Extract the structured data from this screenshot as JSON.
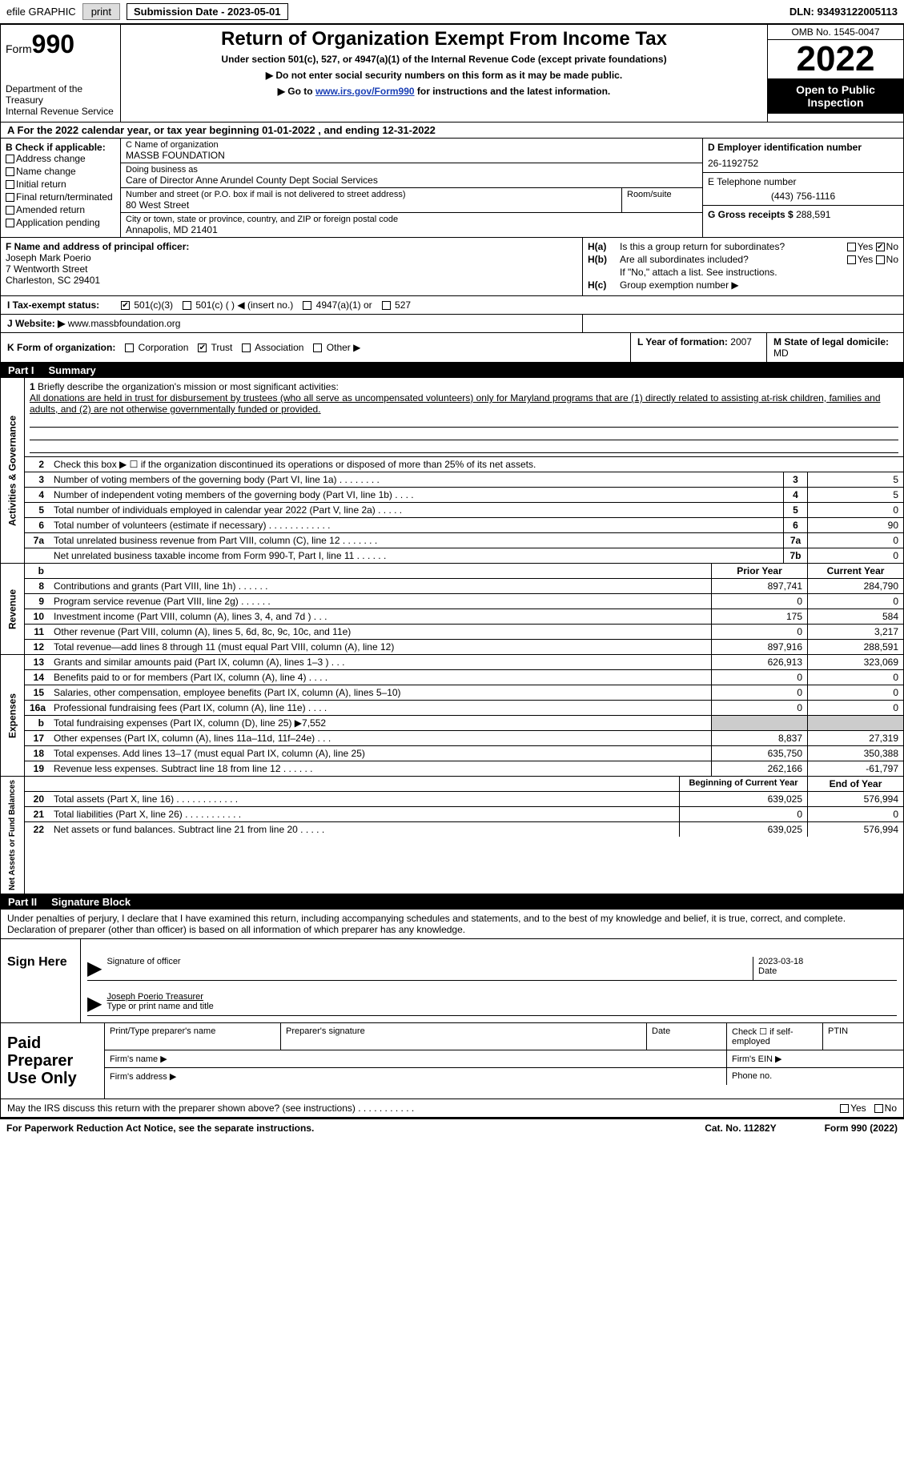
{
  "top": {
    "efile_label": "efile GRAPHIC",
    "print_btn": "print",
    "sub_date": "Submission Date - 2023-05-01",
    "dln": "DLN: 93493122005113"
  },
  "hdr": {
    "form_label": "Form",
    "form_num": "990",
    "dept": "Department of the Treasury\nInternal Revenue Service",
    "title": "Return of Organization Exempt From Income Tax",
    "sub1": "Under section 501(c), 527, or 4947(a)(1) of the Internal Revenue Code (except private foundations)",
    "sub2": "▶ Do not enter social security numbers on this form as it may be made public.",
    "sub3_a": "▶ Go to ",
    "sub3_link": "www.irs.gov/Form990",
    "sub3_b": " for instructions and the latest information.",
    "omb": "OMB No. 1545-0047",
    "year": "2022",
    "open_pub": "Open to Public Inspection"
  },
  "row_a": "A For the 2022 calendar year, or tax year beginning 01-01-2022    , and ending 12-31-2022",
  "col_b": {
    "hdr": "B Check if applicable:",
    "opts": [
      "Address change",
      "Name change",
      "Initial return",
      "Final return/terminated",
      "Amended return",
      "Application pending"
    ]
  },
  "col_c": {
    "name_lbl": "C Name of organization",
    "name_val": "MASSB FOUNDATION",
    "dba_lbl": "Doing business as",
    "dba_val": "Care of Director Anne Arundel County Dept Social Services",
    "street_lbl": "Number and street (or P.O. box if mail is not delivered to street address)",
    "street_val": "80 West Street",
    "room_lbl": "Room/suite",
    "city_lbl": "City or town, state or province, country, and ZIP or foreign postal code",
    "city_val": "Annapolis, MD  21401"
  },
  "col_d": {
    "ein_lbl": "D Employer identification number",
    "ein_val": "26-1192752",
    "tel_lbl": "E Telephone number",
    "tel_val": "(443) 756-1116",
    "gross_lbl": "G Gross receipts $",
    "gross_val": "288,591"
  },
  "row_f": {
    "lbl": "F Name and address of principal officer:",
    "name": "Joseph Mark Poerio",
    "street": "7 Wentworth Street",
    "city": "Charleston, SC  29401"
  },
  "row_h": {
    "ha_lbl": "H(a)",
    "ha_txt": "Is this a group return for subordinates?",
    "yes": "Yes",
    "no": "No",
    "hb_lbl": "H(b)",
    "hb_txt": "Are all subordinates included?",
    "hb_note": "If \"No,\" attach a list. See instructions.",
    "hc_lbl": "H(c)",
    "hc_txt": "Group exemption number ▶"
  },
  "row_i": {
    "lbl": "I   Tax-exempt status:",
    "opt1": "501(c)(3)",
    "opt2": "501(c) (  ) ◀ (insert no.)",
    "opt3": "4947(a)(1) or",
    "opt4": "527"
  },
  "row_j": {
    "lbl": "J  Website: ▶",
    "val": "www.massbfoundation.org"
  },
  "row_k": {
    "lbl": "K Form of organization:",
    "opts": [
      "Corporation",
      "Trust",
      "Association",
      "Other ▶"
    ],
    "l_lbl": "L Year of formation:",
    "l_val": "2007",
    "m_lbl": "M State of legal domicile:",
    "m_val": "MD"
  },
  "part1": {
    "pn": "Part I",
    "title": "Summary"
  },
  "vtabs": {
    "ag": "Activities & Governance",
    "rev": "Revenue",
    "exp": "Expenses",
    "na": "Net Assets or Fund Balances"
  },
  "mission": {
    "num": "1",
    "lbl": "Briefly describe the organization's mission or most significant activities:",
    "txt": "All donations are held in trust for disbursement by trustees (who all serve as uncompensated volunteers) only for Maryland programs that are (1) directly related to assisting at-risk children, families and adults, and (2) are not otherwise governmentally funded or provided."
  },
  "line2": {
    "num": "2",
    "txt": "Check this box ▶ ☐ if the organization discontinued its operations or disposed of more than 25% of its net assets."
  },
  "lines_ag": [
    {
      "n": "3",
      "d": "Number of voting members of the governing body (Part VI, line 1a)  .   .   .   .   .   .   .   .",
      "b": "3",
      "v": "5"
    },
    {
      "n": "4",
      "d": "Number of independent voting members of the governing body (Part VI, line 1b)  .   .   .   .",
      "b": "4",
      "v": "5"
    },
    {
      "n": "5",
      "d": "Total number of individuals employed in calendar year 2022 (Part V, line 2a)  .   .   .   .   .",
      "b": "5",
      "v": "0"
    },
    {
      "n": "6",
      "d": "Total number of volunteers (estimate if necessary)   .   .   .   .   .   .   .   .   .   .   .   .",
      "b": "6",
      "v": "90"
    },
    {
      "n": "7a",
      "d": "Total unrelated business revenue from Part VIII, column (C), line 12  .   .   .   .   .   .   .",
      "b": "7a",
      "v": "0"
    },
    {
      "n": "",
      "d": "Net unrelated business taxable income from Form 990-T, Part I, line 11  .   .   .   .   .   .",
      "b": "7b",
      "v": "0"
    }
  ],
  "rev_hdr": {
    "py": "Prior Year",
    "cy": "Current Year"
  },
  "lines_rev": [
    {
      "n": "8",
      "d": "Contributions and grants (Part VIII, line 1h)   .   .   .   .   .   .",
      "py": "897,741",
      "cy": "284,790"
    },
    {
      "n": "9",
      "d": "Program service revenue (Part VIII, line 2g)   .   .   .   .   .   .",
      "py": "0",
      "cy": "0"
    },
    {
      "n": "10",
      "d": "Investment income (Part VIII, column (A), lines 3, 4, and 7d )   .   .   .",
      "py": "175",
      "cy": "584"
    },
    {
      "n": "11",
      "d": "Other revenue (Part VIII, column (A), lines 5, 6d, 8c, 9c, 10c, and 11e)",
      "py": "0",
      "cy": "3,217"
    },
    {
      "n": "12",
      "d": "Total revenue—add lines 8 through 11 (must equal Part VIII, column (A), line 12)",
      "py": "897,916",
      "cy": "288,591"
    }
  ],
  "lines_exp": [
    {
      "n": "13",
      "d": "Grants and similar amounts paid (Part IX, column (A), lines 1–3 )   .   .   .",
      "py": "626,913",
      "cy": "323,069"
    },
    {
      "n": "14",
      "d": "Benefits paid to or for members (Part IX, column (A), line 4)   .   .   .   .",
      "py": "0",
      "cy": "0"
    },
    {
      "n": "15",
      "d": "Salaries, other compensation, employee benefits (Part IX, column (A), lines 5–10)",
      "py": "0",
      "cy": "0"
    },
    {
      "n": "16a",
      "d": "Professional fundraising fees (Part IX, column (A), line 11e)   .   .   .   .",
      "py": "0",
      "cy": "0"
    },
    {
      "n": "b",
      "d": "Total fundraising expenses (Part IX, column (D), line 25) ▶7,552",
      "py": "",
      "cy": "",
      "grey": true
    },
    {
      "n": "17",
      "d": "Other expenses (Part IX, column (A), lines 11a–11d, 11f–24e)   .   .   .",
      "py": "8,837",
      "cy": "27,319"
    },
    {
      "n": "18",
      "d": "Total expenses. Add lines 13–17 (must equal Part IX, column (A), line 25)",
      "py": "635,750",
      "cy": "350,388"
    },
    {
      "n": "19",
      "d": "Revenue less expenses. Subtract line 18 from line 12  .   .   .   .   .   .",
      "py": "262,166",
      "cy": "-61,797"
    }
  ],
  "na_hdr": {
    "py": "Beginning of Current Year",
    "cy": "End of Year"
  },
  "lines_na": [
    {
      "n": "20",
      "d": "Total assets (Part X, line 16)  .   .   .   .   .   .   .   .   .   .   .   .",
      "py": "639,025",
      "cy": "576,994"
    },
    {
      "n": "21",
      "d": "Total liabilities (Part X, line 26)   .   .   .   .   .   .   .   .   .   .   .",
      "py": "0",
      "cy": "0"
    },
    {
      "n": "22",
      "d": "Net assets or fund balances. Subtract line 21 from line 20  .   .   .   .   .",
      "py": "639,025",
      "cy": "576,994"
    }
  ],
  "part2": {
    "pn": "Part II",
    "title": "Signature Block"
  },
  "sig_text": "Under penalties of perjury, I declare that I have examined this return, including accompanying schedules and statements, and to the best of my knowledge and belief, it is true, correct, and complete. Declaration of preparer (other than officer) is based on all information of which preparer has any knowledge.",
  "sign_here": "Sign Here",
  "sig_officer": "Signature of officer",
  "sig_date_lbl": "Date",
  "sig_date_val": "2023-03-18",
  "sig_name": "Joseph Poerio Treasurer",
  "sig_name_lbl": "Type or print name and title",
  "prep_lbl": "Paid Preparer Use Only",
  "prep_r1": {
    "c1": "Print/Type preparer's name",
    "c2": "Preparer's signature",
    "c3": "Date",
    "c4": "Check ☐ if self-employed",
    "c5": "PTIN"
  },
  "prep_r2": {
    "c1": "Firm's name   ▶",
    "c2": "Firm's EIN ▶"
  },
  "prep_r3": {
    "c1": "Firm's address ▶",
    "c2": "Phone no."
  },
  "discuss": "May the IRS discuss this return with the preparer shown above? (see instructions)   .   .   .   .   .   .   .   .   .   .   .",
  "footer": {
    "l": "For Paperwork Reduction Act Notice, see the separate instructions.",
    "m": "Cat. No. 11282Y",
    "r": "Form 990 (2022)"
  }
}
